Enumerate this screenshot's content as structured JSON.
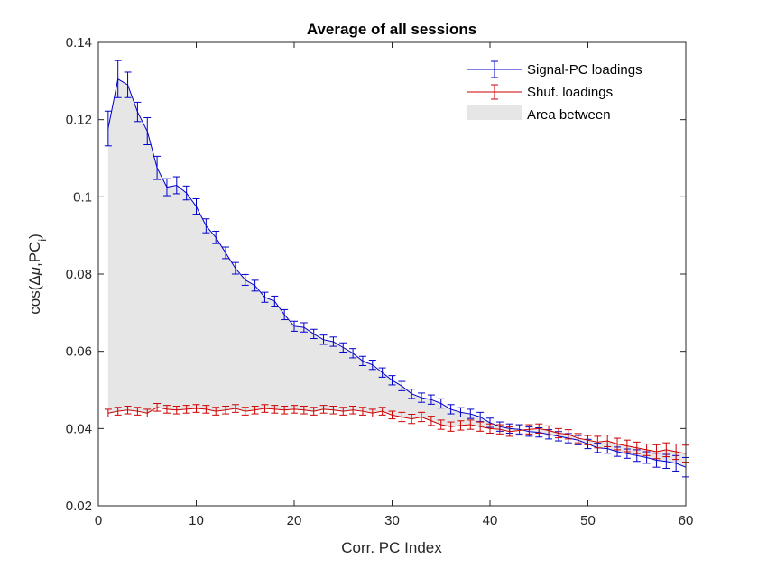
{
  "chart_data": {
    "type": "line",
    "title": "Average of all sessions",
    "xlabel": "Corr. PC Index",
    "ylabel_parts": [
      "cos(",
      "Δ",
      "μ",
      ",PC",
      "i",
      ")"
    ],
    "xlim": [
      0,
      60
    ],
    "ylim": [
      0.02,
      0.14
    ],
    "xticks": [
      0,
      10,
      20,
      30,
      40,
      50,
      60
    ],
    "yticks": [
      0.02,
      0.04,
      0.06,
      0.08,
      0.1,
      0.12,
      0.14
    ],
    "ytick_labels": [
      "0.02",
      "0.04",
      "0.06",
      "0.08",
      "0.1",
      "0.12",
      "0.14"
    ],
    "x": [
      1,
      2,
      3,
      4,
      5,
      6,
      7,
      8,
      9,
      10,
      11,
      12,
      13,
      14,
      15,
      16,
      17,
      18,
      19,
      20,
      21,
      22,
      23,
      24,
      25,
      26,
      27,
      28,
      29,
      30,
      31,
      32,
      33,
      34,
      35,
      36,
      37,
      38,
      39,
      40,
      41,
      42,
      43,
      44,
      45,
      46,
      47,
      48,
      49,
      50,
      51,
      52,
      53,
      54,
      55,
      56,
      57,
      58,
      59,
      60
    ],
    "series": [
      {
        "name": "Signal-PC loadings",
        "color": "#0000cc",
        "values": [
          0.1177,
          0.1305,
          0.129,
          0.122,
          0.117,
          0.1075,
          0.1025,
          0.103,
          0.101,
          0.0975,
          0.0925,
          0.0895,
          0.0855,
          0.0815,
          0.0785,
          0.077,
          0.074,
          0.073,
          0.0695,
          0.0665,
          0.0662,
          0.0645,
          0.063,
          0.0625,
          0.061,
          0.0595,
          0.0575,
          0.0565,
          0.0545,
          0.0525,
          0.051,
          0.049,
          0.048,
          0.0475,
          0.0465,
          0.045,
          0.0442,
          0.0438,
          0.043,
          0.0415,
          0.0405,
          0.04,
          0.0398,
          0.0392,
          0.039,
          0.0385,
          0.038,
          0.0375,
          0.037,
          0.036,
          0.035,
          0.0348,
          0.034,
          0.0335,
          0.033,
          0.0325,
          0.0318,
          0.0315,
          0.031,
          0.03
        ],
        "errors": [
          0.0045,
          0.0048,
          0.0033,
          0.0025,
          0.0035,
          0.003,
          0.0022,
          0.0022,
          0.0018,
          0.002,
          0.0018,
          0.0016,
          0.0015,
          0.0015,
          0.0014,
          0.0014,
          0.0013,
          0.0013,
          0.0013,
          0.0013,
          0.0012,
          0.0012,
          0.0012,
          0.0012,
          0.0012,
          0.0012,
          0.0012,
          0.0012,
          0.0012,
          0.0012,
          0.0012,
          0.0012,
          0.0012,
          0.0012,
          0.0012,
          0.0012,
          0.0012,
          0.0012,
          0.0012,
          0.0012,
          0.0012,
          0.0012,
          0.0012,
          0.0012,
          0.0012,
          0.0012,
          0.0012,
          0.0012,
          0.0012,
          0.0012,
          0.0012,
          0.0012,
          0.0012,
          0.0012,
          0.0015,
          0.0015,
          0.0018,
          0.0018,
          0.002,
          0.0025
        ]
      },
      {
        "name": "Shuf. loadings",
        "color": "#cc0000",
        "values": [
          0.044,
          0.0445,
          0.0448,
          0.0445,
          0.044,
          0.0455,
          0.045,
          0.0448,
          0.045,
          0.0452,
          0.045,
          0.0445,
          0.0448,
          0.0452,
          0.0445,
          0.0448,
          0.0452,
          0.045,
          0.0448,
          0.045,
          0.0448,
          0.0445,
          0.045,
          0.0448,
          0.0445,
          0.0448,
          0.0445,
          0.044,
          0.0445,
          0.0435,
          0.043,
          0.0425,
          0.043,
          0.042,
          0.041,
          0.0405,
          0.0408,
          0.041,
          0.0405,
          0.04,
          0.0398,
          0.0392,
          0.0395,
          0.0398,
          0.04,
          0.0395,
          0.0388,
          0.0385,
          0.0375,
          0.037,
          0.0365,
          0.0368,
          0.036,
          0.0355,
          0.035,
          0.0345,
          0.034,
          0.0345,
          0.034,
          0.0335
        ],
        "errors": [
          0.001,
          0.001,
          0.001,
          0.001,
          0.001,
          0.001,
          0.001,
          0.001,
          0.001,
          0.001,
          0.001,
          0.001,
          0.001,
          0.001,
          0.001,
          0.001,
          0.001,
          0.001,
          0.001,
          0.001,
          0.001,
          0.001,
          0.001,
          0.001,
          0.001,
          0.001,
          0.001,
          0.001,
          0.001,
          0.001,
          0.0012,
          0.0012,
          0.0012,
          0.0012,
          0.0012,
          0.0012,
          0.0012,
          0.0012,
          0.0012,
          0.0012,
          0.0012,
          0.0012,
          0.0012,
          0.0012,
          0.0012,
          0.0012,
          0.0012,
          0.0012,
          0.0012,
          0.0012,
          0.0015,
          0.0015,
          0.0015,
          0.0015,
          0.0015,
          0.0015,
          0.0018,
          0.0018,
          0.002,
          0.0022
        ]
      }
    ],
    "area_label": "Area between",
    "area_color": "#e6e6e6",
    "grid": false,
    "legend_position": "top-right"
  }
}
